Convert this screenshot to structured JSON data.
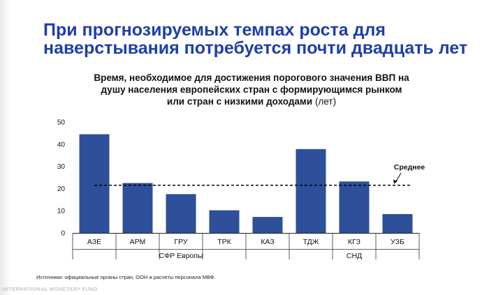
{
  "slide": {
    "headline_line1": "При прогнозируемых темпах роста для",
    "headline_line2": "наверстывания потребуется почти двадцать лет",
    "source": "Источники: официальные органы стран, ООН и расчеты персонала МВФ.",
    "footer": "INTERNATIONAL MONETARY FUND"
  },
  "chart_data": {
    "type": "bar",
    "title_lines": [
      "Время, необходимое для достижения порогового значения ВВП на",
      "душу населения европейских стран с формирующимся рынком",
      "или стран с низкими доходами"
    ],
    "title_unit": "(лет)",
    "categories": [
      "АЗЕ",
      "АРМ",
      "ГРУ",
      "ТРК",
      "КАЗ",
      "ТДЖ",
      "КГЗ",
      "УЗБ"
    ],
    "values": [
      44.5,
      22.5,
      17.5,
      10.2,
      7.2,
      37.8,
      23.2,
      8.5
    ],
    "groups": [
      {
        "label": "СФР Европы",
        "categories": [
          "АЗЕ",
          "АРМ",
          "ГРУ",
          "ТРК",
          "КАЗ"
        ]
      },
      {
        "label": "СНД",
        "categories": [
          "ТДЖ",
          "КГЗ",
          "УЗБ"
        ]
      }
    ],
    "average": {
      "label": "Среднее",
      "value": 21.5
    },
    "ylim": [
      0,
      50
    ],
    "yticks": [
      0,
      10,
      20,
      30,
      40,
      50
    ],
    "bar_color": "#2e4f99",
    "grid": false,
    "legend": "none"
  }
}
